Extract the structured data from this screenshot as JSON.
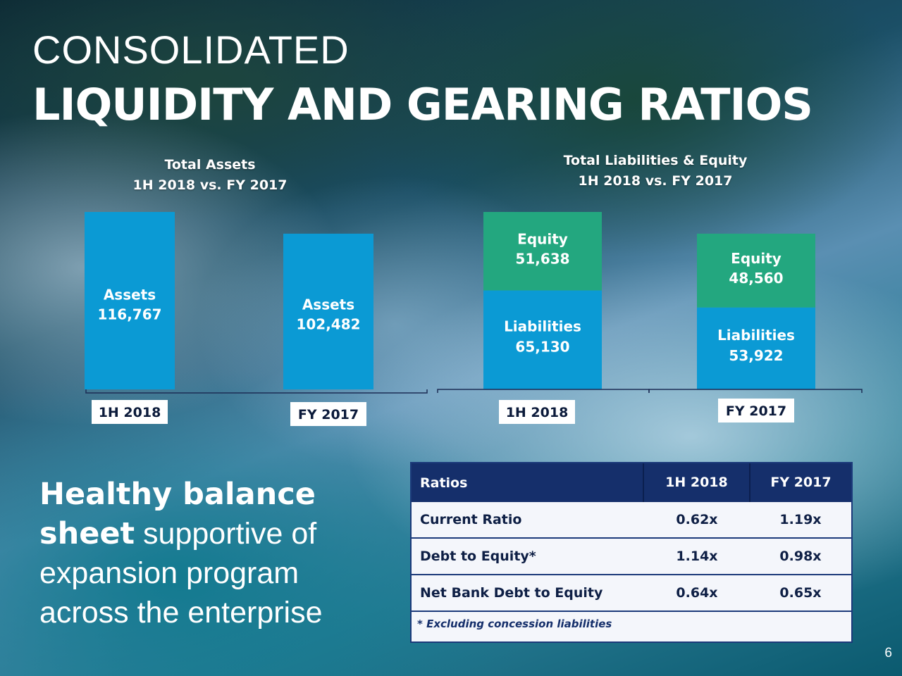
{
  "title_line1": "CONSOLIDATED",
  "title_line2": "LIQUIDITY AND GEARING RATIOS",
  "chart_data": [
    {
      "type": "bar",
      "title": [
        "Total Assets",
        "1H 2018 vs. FY 2017"
      ],
      "categories": [
        "1H 2018",
        "FY 2017"
      ],
      "series": [
        {
          "name": "Assets",
          "values": [
            116767,
            102482
          ]
        }
      ],
      "value_labels": [
        "116,767",
        "102,482"
      ]
    },
    {
      "type": "bar",
      "stacked": true,
      "title": [
        "Total Liabilities & Equity",
        "1H 2018 vs. FY 2017"
      ],
      "categories": [
        "1H 2018",
        "FY 2017"
      ],
      "series": [
        {
          "name": "Liabilities",
          "values": [
            65130,
            53922
          ]
        },
        {
          "name": "Equity",
          "values": [
            51638,
            48560
          ]
        }
      ],
      "value_labels": {
        "Liabilities": [
          "65,130",
          "53,922"
        ],
        "Equity": [
          "51,638",
          "48,560"
        ]
      }
    }
  ],
  "colors": {
    "assets": "#0b9ad4",
    "liabilities": "#0b9ad4",
    "equity": "#23a77f"
  },
  "caption": {
    "bold1": "Healthy balance",
    "bold2": "sheet",
    "rest1": " supportive of",
    "line3": "expansion program",
    "line4": "across the enterprise"
  },
  "ratios_table": {
    "headers": [
      "Ratios",
      "1H 2018",
      "FY 2017"
    ],
    "rows": [
      [
        "Current Ratio",
        "0.62x",
        "1.19x"
      ],
      [
        "Debt to Equity*",
        "1.14x",
        "0.98x"
      ],
      [
        "Net Bank Debt to Equity",
        "0.64x",
        "0.65x"
      ]
    ],
    "footnote": "* Excluding concession liabilities"
  },
  "page_number": "6"
}
